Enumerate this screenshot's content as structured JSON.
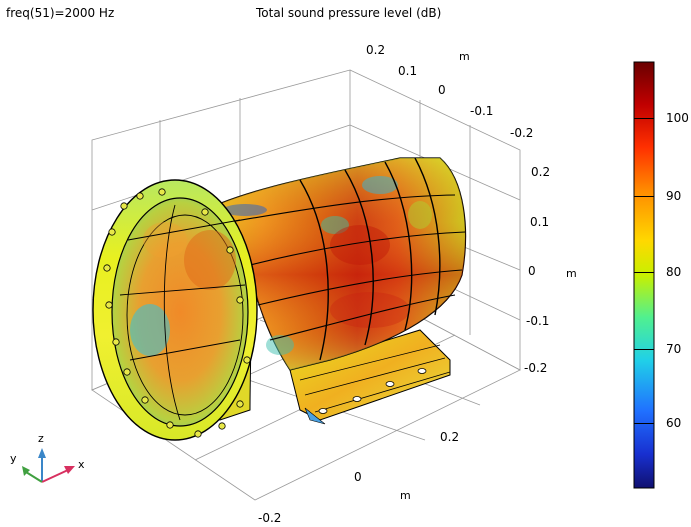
{
  "header": {
    "frequency_label": "freq(51)=2000 Hz",
    "title": "Total sound pressure level (dB)"
  },
  "axes": {
    "unit_label": "m",
    "x_ticks": [
      "0.2",
      "0",
      "-0.2"
    ],
    "y_ticks": [
      "0.2",
      "0.1",
      "0",
      "-0.1",
      "-0.2"
    ],
    "z_ticks": [
      "0.2",
      "0.1",
      "0",
      "-0.1",
      "-0.2"
    ]
  },
  "triad": {
    "x": "x",
    "y": "y",
    "z": "z"
  },
  "colorbar": {
    "ticks": [
      "100",
      "90",
      "80",
      "70",
      "60"
    ],
    "colors": [
      "#7a0000",
      "#c80000",
      "#ff4a00",
      "#ff9600",
      "#ffe000",
      "#b8f000",
      "#40f0a0",
      "#20c8ff",
      "#2860ff",
      "#1010a0"
    ]
  },
  "chart_data": {
    "type": "heatmap",
    "title": "Total sound pressure level (dB)",
    "colorbar_ticks": [
      100,
      90,
      80,
      70,
      60
    ],
    "colorbar_range": [
      51,
      108
    ]
  }
}
